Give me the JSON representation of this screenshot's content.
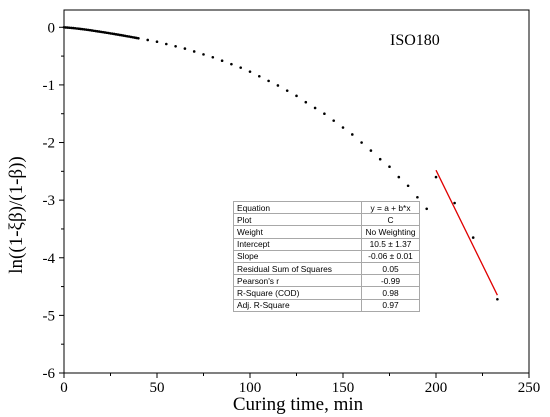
{
  "chart_data": {
    "type": "scatter",
    "xlabel": "Curing time, min",
    "ylabel": "ln((1-ξβ)/(1-β))",
    "xlim": [
      0,
      250
    ],
    "ylim": [
      -6,
      0.3
    ],
    "xticks": [
      0,
      50,
      100,
      150,
      200,
      250
    ],
    "yticks": [
      0,
      -1,
      -2,
      -3,
      -4,
      -5,
      -6
    ],
    "grid": false,
    "annotation": "ISO180",
    "series": [
      {
        "color": "#000000",
        "marker": "dot",
        "x": [
          0,
          1,
          2,
          3,
          4,
          5,
          6,
          7,
          8,
          9,
          10,
          11,
          12,
          13,
          14,
          15,
          16,
          17,
          18,
          19,
          20,
          21,
          22,
          23,
          24,
          25,
          26,
          27,
          28,
          29,
          30,
          31,
          32,
          33,
          34,
          35,
          36,
          37,
          38,
          39,
          40,
          45,
          50,
          55,
          60,
          65,
          70,
          75,
          80,
          85,
          90,
          95,
          100,
          105,
          110,
          115,
          120,
          125,
          130,
          135,
          140,
          145,
          150,
          155,
          160,
          165,
          170,
          175,
          180,
          185,
          190,
          195,
          200,
          210,
          220,
          233
        ],
        "y": [
          0,
          -0.003,
          -0.005,
          -0.008,
          -0.011,
          -0.014,
          -0.017,
          -0.021,
          -0.025,
          -0.029,
          -0.033,
          -0.037,
          -0.041,
          -0.046,
          -0.05,
          -0.055,
          -0.06,
          -0.065,
          -0.07,
          -0.075,
          -0.08,
          -0.085,
          -0.09,
          -0.095,
          -0.1,
          -0.106,
          -0.111,
          -0.116,
          -0.122,
          -0.127,
          -0.133,
          -0.138,
          -0.144,
          -0.15,
          -0.156,
          -0.161,
          -0.167,
          -0.173,
          -0.179,
          -0.185,
          -0.191,
          -0.22,
          -0.25,
          -0.29,
          -0.33,
          -0.37,
          -0.42,
          -0.47,
          -0.52,
          -0.58,
          -0.64,
          -0.7,
          -0.77,
          -0.85,
          -0.93,
          -1.01,
          -1.1,
          -1.19,
          -1.3,
          -1.4,
          -1.5,
          -1.62,
          -1.74,
          -1.86,
          -2.0,
          -2.14,
          -2.29,
          -2.42,
          -2.6,
          -2.75,
          -2.95,
          -3.15,
          -2.6,
          -3.05,
          -3.65,
          -4.72
        ]
      },
      {
        "color": "#e00000",
        "type": "line",
        "x": [
          200,
          233
        ],
        "y": [
          -2.48,
          -4.65
        ]
      }
    ],
    "fit_table": [
      [
        "Equation",
        "y = a + b*x"
      ],
      [
        "Plot",
        "C"
      ],
      [
        "Weight",
        "No Weighting"
      ],
      [
        "Intercept",
        "10.5 ± 1.37"
      ],
      [
        "Slope",
        "-0.06 ± 0.01"
      ],
      [
        "Residual Sum of Squares",
        "0.05"
      ],
      [
        "Pearson's r",
        "-0.99"
      ],
      [
        "R-Square (COD)",
        "0.98"
      ],
      [
        "Adj. R-Square",
        "0.97"
      ]
    ]
  }
}
